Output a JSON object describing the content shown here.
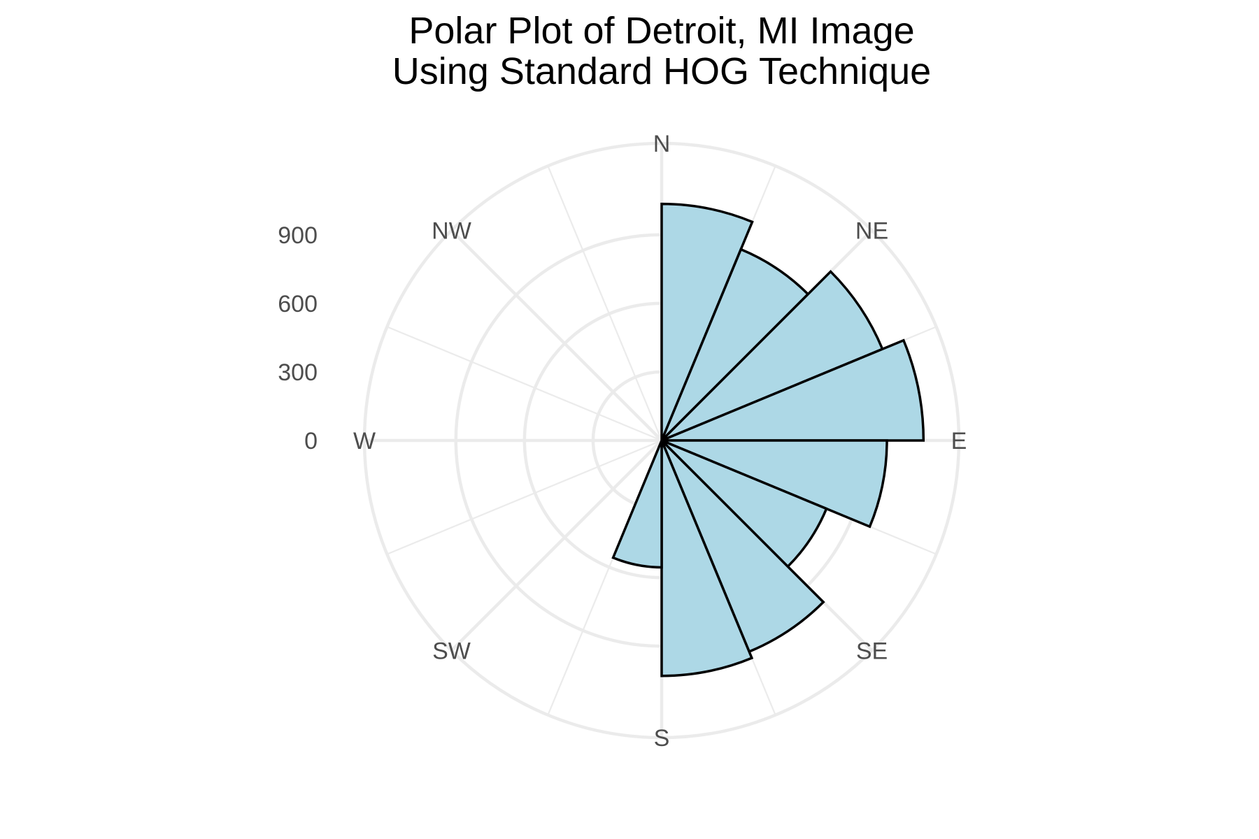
{
  "chart_data": {
    "type": "bar",
    "coord": "polar",
    "title": "Polar Plot of Detroit, MI Image\nUsing Standard HOG Technique",
    "title_lines": [
      "Polar Plot of Detroit, MI Image",
      "Using Standard HOG Technique"
    ],
    "direction_labels": [
      "N",
      "NE",
      "E",
      "SE",
      "S",
      "SW",
      "W",
      "NW"
    ],
    "radial_ticks": [
      0,
      300,
      600,
      900
    ],
    "rlim": [
      0,
      1300
    ],
    "grid": true,
    "bar_fill": "#add8e6",
    "bar_stroke": "#000000",
    "bin_width_deg": 22.5,
    "bars": [
      {
        "start_deg": 0,
        "value": 1035
      },
      {
        "start_deg": 22.5,
        "value": 905
      },
      {
        "start_deg": 45,
        "value": 1045
      },
      {
        "start_deg": 67.5,
        "value": 1145
      },
      {
        "start_deg": 90,
        "value": 985
      },
      {
        "start_deg": 112.5,
        "value": 780
      },
      {
        "start_deg": 135,
        "value": 1000
      },
      {
        "start_deg": 157.5,
        "value": 1030
      },
      {
        "start_deg": 180,
        "value": 555
      }
    ]
  }
}
